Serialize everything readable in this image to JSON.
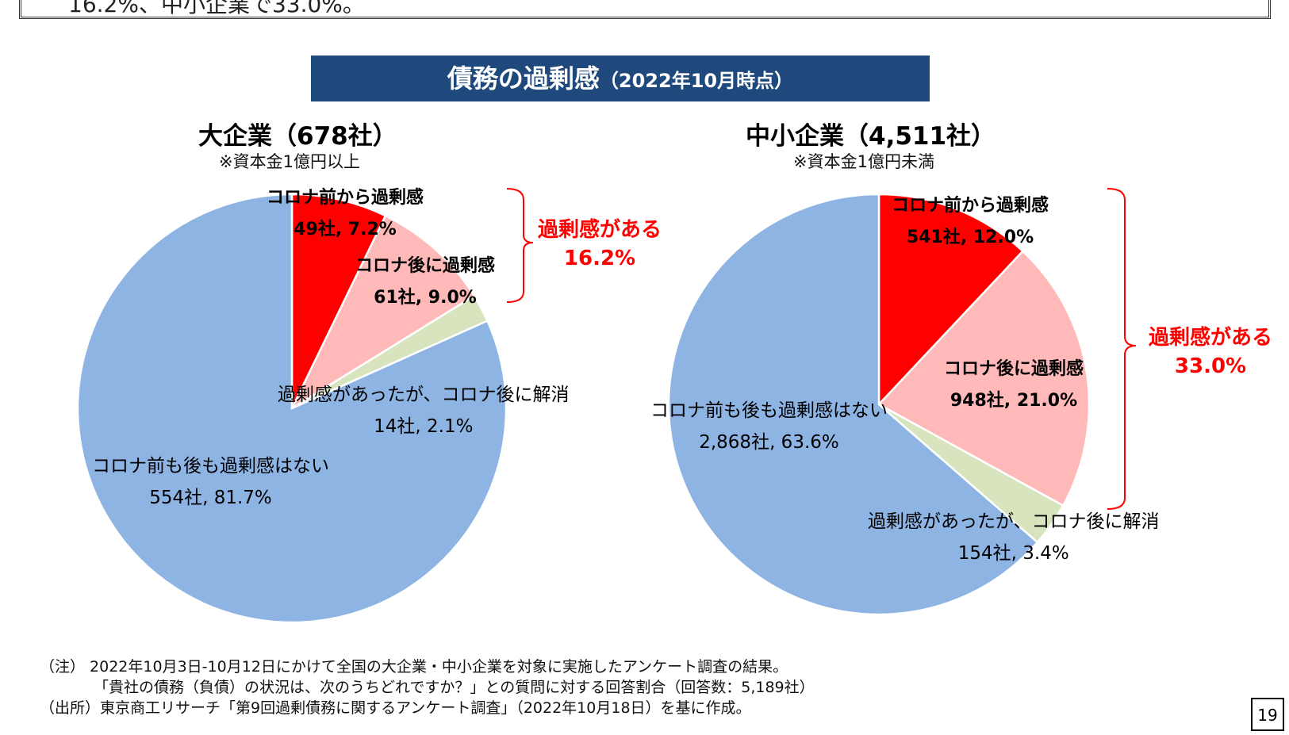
{
  "header": {
    "partial_text": "16.2%、中小企業で33.0%。"
  },
  "banner": {
    "title": "債務の過剰感",
    "subtitle": "（2022年10月時点）"
  },
  "colors": {
    "banner_bg": "#1f497d",
    "before_covid": "#ff0000",
    "after_covid": "#ffb9b9",
    "resolved": "#d7e4bd",
    "none": "#8eb4e3",
    "callout": "#ff0000"
  },
  "chart_data": [
    {
      "type": "pie",
      "title": "大企業（678社）",
      "note": "※資本金1億円以上",
      "slices": [
        {
          "label": "コロナ前から過剰感",
          "value": 7.2,
          "count_text": "49社, 7.2%",
          "color": "#ff0000"
        },
        {
          "label": "コロナ後に過剰感",
          "value": 9.0,
          "count_text": "61社, 9.0%",
          "color": "#ffb9b9"
        },
        {
          "label": "過剰感があったが、コロナ後に解消",
          "value": 2.1,
          "count_text": "14社, 2.1%",
          "color": "#d7e4bd"
        },
        {
          "label": "コロナ前も後も過剰感はない",
          "value": 81.7,
          "count_text": "554社, 81.7%",
          "color": "#8eb4e3"
        }
      ],
      "callout": {
        "label": "過剰感がある",
        "value": "16.2%"
      }
    },
    {
      "type": "pie",
      "title": "中小企業（4,511社）",
      "note": "※資本金1億円未満",
      "slices": [
        {
          "label": "コロナ前から過剰感",
          "value": 12.0,
          "count_text": "541社, 12.0%",
          "color": "#ff0000"
        },
        {
          "label": "コロナ後に過剰感",
          "value": 21.0,
          "count_text": "948社, 21.0%",
          "color": "#ffb9b9"
        },
        {
          "label": "過剰感があったが、コロナ後に解消",
          "value": 3.4,
          "count_text": "154社, 3.4%",
          "color": "#d7e4bd"
        },
        {
          "label": "コロナ前も後も過剰感はない",
          "value": 63.6,
          "count_text": "2,868社, 63.6%",
          "color": "#8eb4e3"
        }
      ],
      "callout": {
        "label": "過剰感がある",
        "value": "33.0%"
      }
    }
  ],
  "footnotes": {
    "note1": "（注） 2022年10月3日-10月12日にかけて全国の大企業・中小企業を対象に実施したアンケート調査の結果。",
    "note2": "「貴社の債務（負債）の状況は、次のうちどれですか？」との質問に対する回答割合（回答数：5,189社）",
    "source": "（出所）東京商工リサーチ「第9回過剰債務に関するアンケート調査」（2022年10月18日）を基に作成。"
  },
  "page_number": "19"
}
